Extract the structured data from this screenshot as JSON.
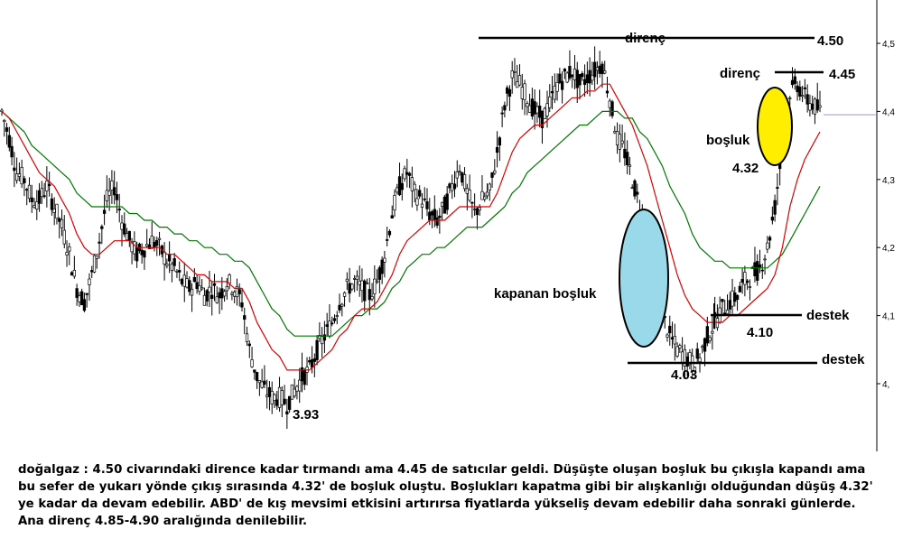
{
  "chart_data": {
    "type": "candlestick",
    "ylim": [
      3.87,
      4.55
    ],
    "y_ticks": [
      "4,5",
      "4,4",
      "4,3",
      "4,2",
      "4,1",
      "4,"
    ],
    "y_tick_values": [
      4.5,
      4.4,
      4.3,
      4.2,
      4.1,
      4.0
    ],
    "current_price": 4.395,
    "candle_close_path": [
      4.4,
      4.36,
      4.31,
      4.3,
      4.27,
      4.27,
      4.29,
      4.26,
      4.23,
      4.19,
      4.14,
      4.12,
      4.16,
      4.21,
      4.27,
      4.29,
      4.24,
      4.21,
      4.19,
      4.2,
      4.21,
      4.2,
      4.18,
      4.17,
      4.15,
      4.14,
      4.15,
      4.13,
      4.14,
      4.13,
      4.15,
      4.14,
      4.12,
      4.05,
      4.01,
      3.99,
      3.98,
      3.98,
      3.97,
      3.99,
      4.01,
      4.02,
      4.05,
      4.07,
      4.09,
      4.12,
      4.14,
      4.15,
      4.14,
      4.13,
      4.15,
      4.19,
      4.25,
      4.29,
      4.31,
      4.28,
      4.27,
      4.25,
      4.24,
      4.26,
      4.29,
      4.32,
      4.28,
      4.25,
      4.27,
      4.28,
      4.34,
      4.41,
      4.45,
      4.44,
      4.42,
      4.4,
      4.39,
      4.41,
      4.44,
      4.45,
      4.46,
      4.44,
      4.45,
      4.46,
      4.47,
      4.42,
      4.36,
      4.34,
      4.3,
      4.26,
      4.22,
      4.17,
      4.1,
      4.07,
      4.05,
      4.04,
      4.03,
      4.04,
      4.07,
      4.09,
      4.11,
      4.12,
      4.13,
      4.15,
      4.16,
      4.17,
      4.2,
      4.26,
      4.35,
      4.43,
      4.44,
      4.42,
      4.41,
      4.4
    ],
    "ema_fast": [
      4.4,
      4.39,
      4.37,
      4.35,
      4.33,
      4.31,
      4.3,
      4.29,
      4.27,
      4.25,
      4.22,
      4.2,
      4.19,
      4.19,
      4.2,
      4.21,
      4.21,
      4.21,
      4.2,
      4.2,
      4.2,
      4.2,
      4.19,
      4.19,
      4.18,
      4.17,
      4.16,
      4.16,
      4.15,
      4.15,
      4.15,
      4.14,
      4.14,
      4.12,
      4.09,
      4.07,
      4.05,
      4.04,
      4.02,
      4.02,
      4.02,
      4.02,
      4.03,
      4.04,
      4.05,
      4.07,
      4.08,
      4.1,
      4.11,
      4.11,
      4.12,
      4.14,
      4.16,
      4.19,
      4.21,
      4.22,
      4.23,
      4.24,
      4.24,
      4.24,
      4.25,
      4.26,
      4.26,
      4.26,
      4.26,
      4.26,
      4.28,
      4.31,
      4.34,
      4.36,
      4.37,
      4.38,
      4.38,
      4.39,
      4.4,
      4.41,
      4.42,
      4.42,
      4.43,
      4.43,
      4.44,
      4.44,
      4.42,
      4.4,
      4.38,
      4.35,
      4.32,
      4.28,
      4.24,
      4.2,
      4.16,
      4.13,
      4.11,
      4.1,
      4.09,
      4.09,
      4.09,
      4.1,
      4.1,
      4.11,
      4.12,
      4.13,
      4.14,
      4.16,
      4.2,
      4.26,
      4.3,
      4.33,
      4.35,
      4.37
    ],
    "ema_slow": [
      4.4,
      4.39,
      4.38,
      4.37,
      4.35,
      4.34,
      4.33,
      4.32,
      4.31,
      4.3,
      4.28,
      4.27,
      4.26,
      4.26,
      4.26,
      4.26,
      4.26,
      4.25,
      4.25,
      4.24,
      4.24,
      4.23,
      4.23,
      4.22,
      4.22,
      4.21,
      4.21,
      4.2,
      4.2,
      4.19,
      4.19,
      4.18,
      4.18,
      4.17,
      4.15,
      4.13,
      4.11,
      4.1,
      4.08,
      4.07,
      4.07,
      4.07,
      4.07,
      4.07,
      4.07,
      4.08,
      4.09,
      4.1,
      4.1,
      4.11,
      4.11,
      4.12,
      4.14,
      4.15,
      4.17,
      4.18,
      4.19,
      4.19,
      4.2,
      4.2,
      4.21,
      4.22,
      4.23,
      4.23,
      4.23,
      4.24,
      4.25,
      4.26,
      4.28,
      4.29,
      4.31,
      4.32,
      4.33,
      4.34,
      4.35,
      4.36,
      4.37,
      4.38,
      4.38,
      4.39,
      4.4,
      4.4,
      4.4,
      4.39,
      4.39,
      4.37,
      4.36,
      4.34,
      4.32,
      4.29,
      4.27,
      4.25,
      4.22,
      4.2,
      4.19,
      4.18,
      4.18,
      4.17,
      4.17,
      4.17,
      4.17,
      4.17,
      4.17,
      4.18,
      4.19,
      4.21,
      4.23,
      4.25,
      4.27,
      4.29
    ],
    "annotations": {
      "resistance_main": {
        "label": "direnç",
        "value_label": "4.50",
        "value": 4.5
      },
      "resistance_second": {
        "label": "direnç",
        "value_label": "4.45",
        "value": 4.45
      },
      "gap_up": {
        "label": "boşluk",
        "value_label": "4.32"
      },
      "gap_closed": {
        "label": "kapanan boşluk"
      },
      "support_high": {
        "label": "destek",
        "value_label": "4.10",
        "value": 4.1
      },
      "support_low": {
        "label": "destek",
        "value_label": "4.03",
        "value": 4.03
      },
      "low_point": {
        "value_label": "3.93"
      }
    },
    "colors": {
      "ema_fast": "#dd0000",
      "ema_slow": "#007700",
      "gap_closed_fill": "#99d9ea",
      "gap_up_fill": "#ffee00",
      "candles": "#000000",
      "price_line": "#9999cc"
    }
  },
  "caption": "doğalgaz : 4.50 civarındaki dirence kadar tırmandı ama 4.45 de satıcılar geldi. Düşüşte oluşan boşluk bu çıkışla kapandı ama bu sefer de yukarı yönde çıkış sırasında 4.32' de boşluk oluştu. Boşlukları kapatma gibi bir alışkanlığı olduğundan düşüş 4.32' ye kadar da devam edebilir. ABD' de kış mevsimi etkisini artırırsa fiyatlarda yükseliş devam edebilir daha sonraki günlerde. Ana direnç 4.85-4.90 aralığında denilebilir."
}
